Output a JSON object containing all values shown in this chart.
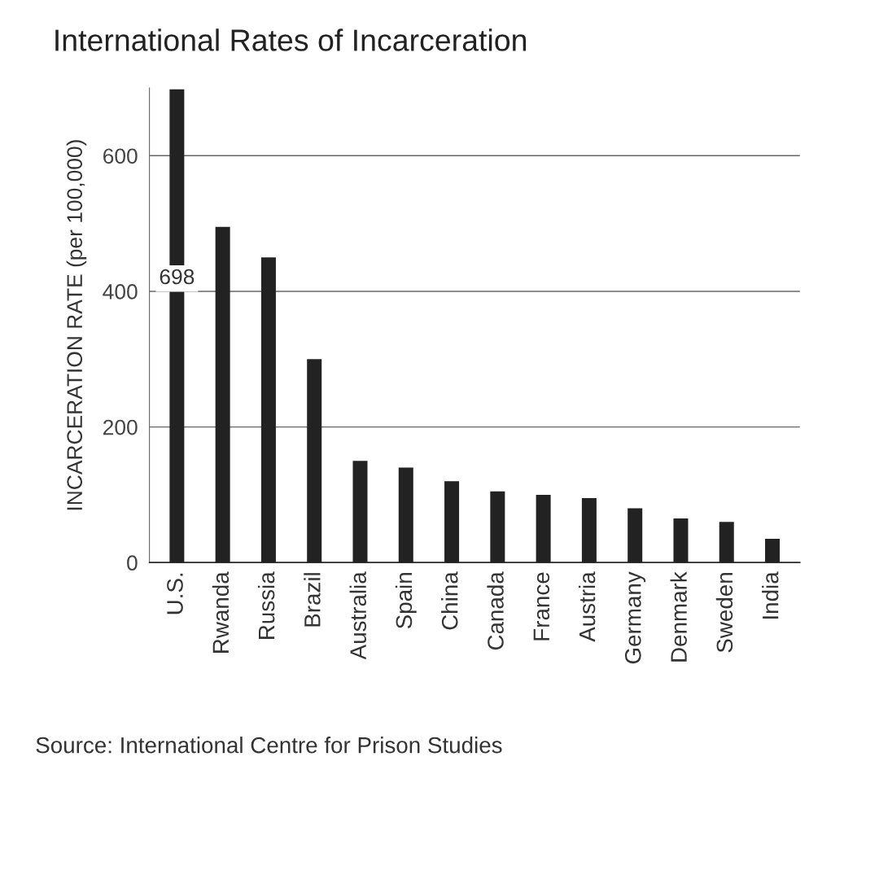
{
  "chart_data": {
    "type": "bar",
    "title": "International Rates of Incarceration",
    "ylabel": "INCARCERATION RATE (per 100,000)",
    "annotations": [
      "Source: International Centre for Prison Studies"
    ],
    "categories": [
      "U.S.",
      "Rwanda",
      "Russia",
      "Brazil",
      "Australia",
      "Spain",
      "China",
      "Canada",
      "France",
      "Austria",
      "Germany",
      "Denmark",
      "Sweden",
      "India"
    ],
    "values": [
      698,
      495,
      450,
      300,
      150,
      140,
      120,
      105,
      100,
      95,
      80,
      65,
      60,
      35
    ],
    "value_labels": [
      "698",
      null,
      null,
      null,
      null,
      null,
      null,
      null,
      null,
      null,
      null,
      null,
      null,
      null
    ],
    "color": "#222222",
    "ylim": [
      0,
      700
    ],
    "yticks": [
      0,
      200,
      400,
      600
    ],
    "grid": "y"
  }
}
